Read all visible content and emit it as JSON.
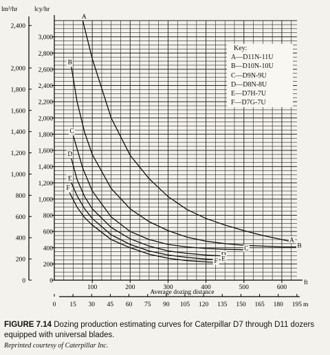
{
  "figure": {
    "label": "FIGURE 7.14",
    "caption": "Dozing production estimating curves for Caterpillar D7 through D11 dozers equipped with universal blades.",
    "credit": "Reprinted courtesy of Caterpillar Inc."
  },
  "key": {
    "title": "Key:",
    "items": [
      "A—D11N-11U",
      "B—D10N-10U",
      "C—D9N-9U",
      "D—D8N-8U",
      "E—D7H-7U",
      "F—D7G-7U"
    ]
  },
  "chart_data": {
    "type": "line",
    "title": "",
    "xlabel": "Average dozing distance",
    "x_unit_ft": "ft",
    "x_unit_m": "m",
    "y_unit_m3": "lm³/hr",
    "y_unit_cy": "lcy/hr",
    "xlim": [
      0,
      640
    ],
    "ylim": [
      0,
      3200
    ],
    "x_ticks_ft": [
      "100",
      "200",
      "300",
      "400",
      "500",
      "600"
    ],
    "x_ticks_m": [
      "0",
      "15",
      "30",
      "45",
      "60",
      "75",
      "90",
      "105",
      "120",
      "135",
      "150",
      "165",
      "180",
      "195"
    ],
    "y_ticks_cy": [
      "0",
      "200",
      "400",
      "600",
      "800",
      "1,000",
      "1,200",
      "1,400",
      "1,600",
      "1,800",
      "2,000",
      "2,200",
      "2,400",
      "2,600",
      "2,800",
      "3,000"
    ],
    "y_ticks_m3": [
      "0",
      "200",
      "400",
      "600",
      "800",
      "1,000",
      "1,200",
      "1,400",
      "1,600",
      "1,800",
      "2,000",
      "2,400"
    ],
    "grid": true,
    "legend": "top-right",
    "series": [
      {
        "name": "A",
        "color": "#111111",
        "points": [
          [
            75,
            3200
          ],
          [
            100,
            2730
          ],
          [
            150,
            2000
          ],
          [
            200,
            1540
          ],
          [
            250,
            1250
          ],
          [
            300,
            1030
          ],
          [
            350,
            870
          ],
          [
            400,
            760
          ],
          [
            450,
            680
          ],
          [
            500,
            610
          ],
          [
            550,
            550
          ],
          [
            600,
            500
          ],
          [
            620,
            480
          ]
        ]
      },
      {
        "name": "B",
        "color": "#111111",
        "points": [
          [
            45,
            2630
          ],
          [
            60,
            2200
          ],
          [
            80,
            1820
          ],
          [
            100,
            1550
          ],
          [
            150,
            1130
          ],
          [
            200,
            880
          ],
          [
            250,
            720
          ],
          [
            300,
            610
          ],
          [
            350,
            530
          ],
          [
            400,
            480
          ],
          [
            450,
            450
          ],
          [
            500,
            430
          ],
          [
            550,
            420
          ],
          [
            600,
            410
          ],
          [
            640,
            410
          ]
        ]
      },
      {
        "name": "C",
        "color": "#111111",
        "points": [
          [
            50,
            1780
          ],
          [
            75,
            1380
          ],
          [
            100,
            1100
          ],
          [
            150,
            780
          ],
          [
            200,
            600
          ],
          [
            250,
            500
          ],
          [
            300,
            440
          ],
          [
            350,
            410
          ],
          [
            400,
            390
          ],
          [
            450,
            380
          ],
          [
            500,
            375
          ]
        ]
      },
      {
        "name": "D",
        "color": "#111111",
        "points": [
          [
            45,
            1500
          ],
          [
            60,
            1240
          ],
          [
            80,
            1030
          ],
          [
            100,
            880
          ],
          [
            150,
            650
          ],
          [
            200,
            510
          ],
          [
            250,
            420
          ],
          [
            300,
            360
          ],
          [
            350,
            330
          ],
          [
            400,
            310
          ],
          [
            440,
            300
          ]
        ]
      },
      {
        "name": "E",
        "color": "#111111",
        "points": [
          [
            45,
            1200
          ],
          [
            60,
            1040
          ],
          [
            80,
            880
          ],
          [
            100,
            760
          ],
          [
            150,
            560
          ],
          [
            200,
            440
          ],
          [
            250,
            360
          ],
          [
            300,
            310
          ],
          [
            350,
            280
          ],
          [
            400,
            260
          ],
          [
            440,
            250
          ]
        ]
      },
      {
        "name": "F",
        "color": "#111111",
        "points": [
          [
            40,
            1080
          ],
          [
            60,
            900
          ],
          [
            80,
            770
          ],
          [
            100,
            680
          ],
          [
            150,
            500
          ],
          [
            200,
            400
          ],
          [
            250,
            320
          ],
          [
            300,
            270
          ],
          [
            350,
            240
          ],
          [
            400,
            225
          ],
          [
            420,
            220
          ]
        ]
      }
    ]
  }
}
